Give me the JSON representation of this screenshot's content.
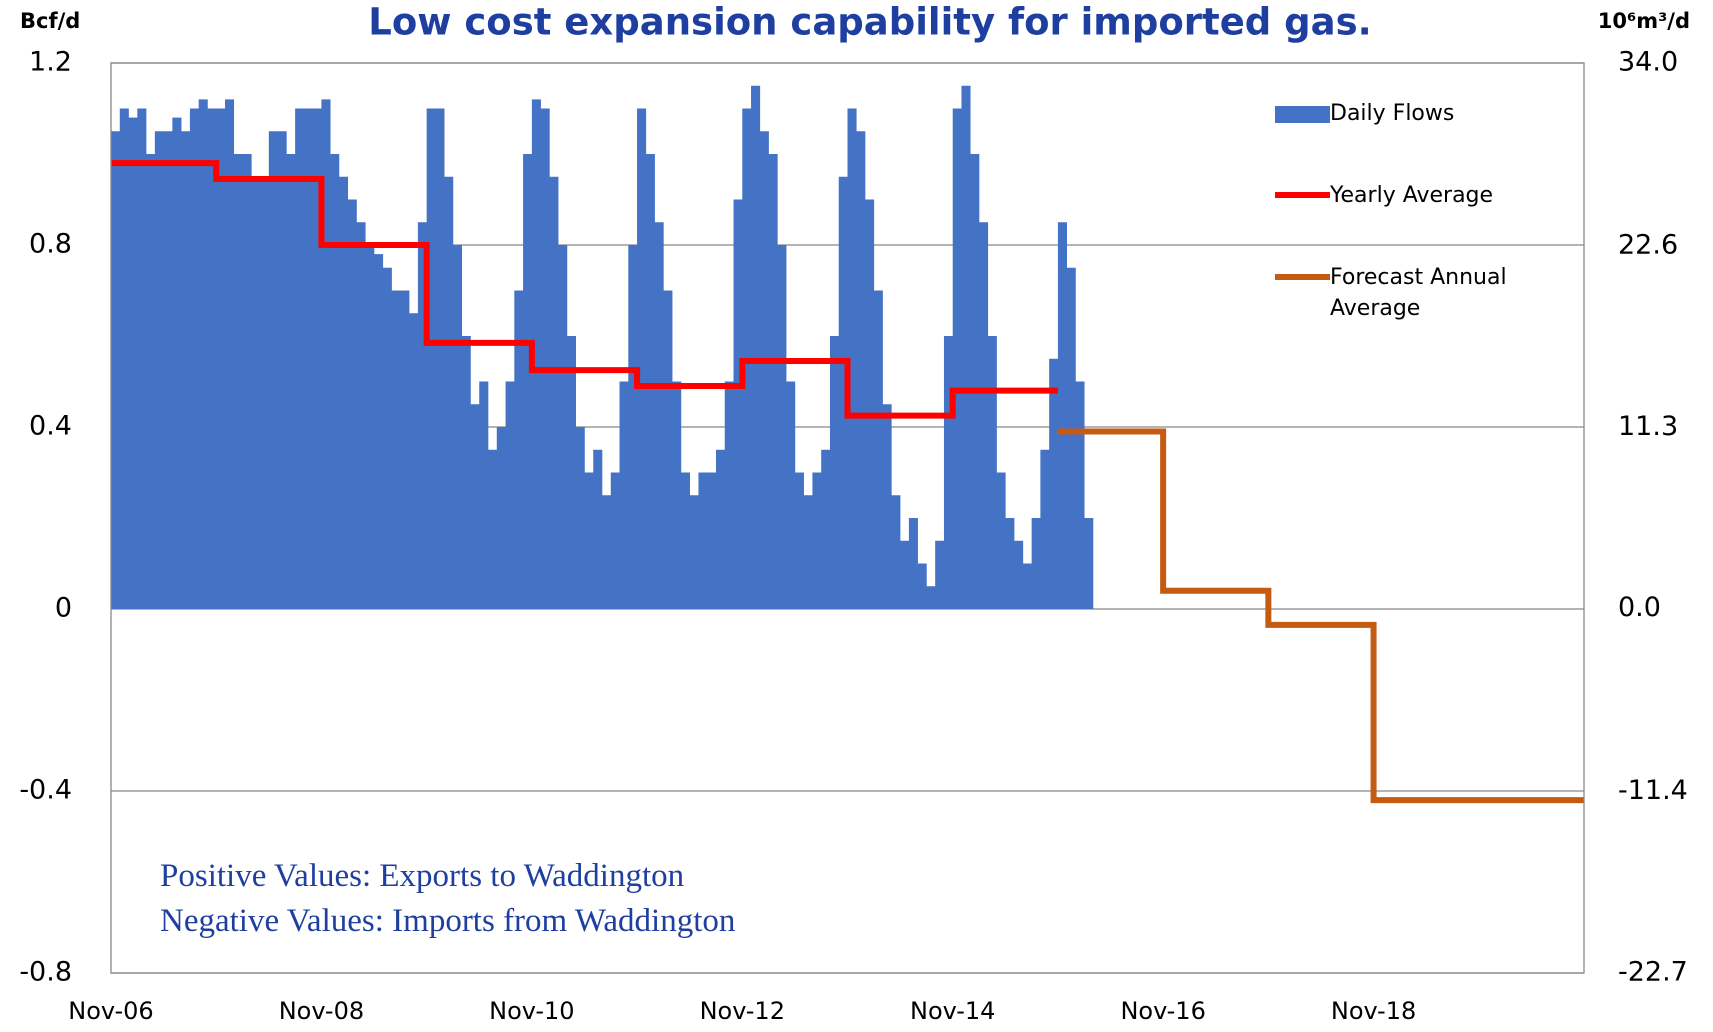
{
  "chart_data": {
    "type": "bar",
    "title": "Low cost expansion capability for imported gas.",
    "y_label": "Bcf/d",
    "y2_label": "10⁶m³/d",
    "annotations": [
      "Positive Values: Exports to Waddington",
      "Negative Values: Imports from Waddington"
    ],
    "xlim": [
      "Nov-06",
      "Nov-20"
    ],
    "xticks": [
      "Nov-06",
      "Nov-08",
      "Nov-10",
      "Nov-12",
      "Nov-14",
      "Nov-16",
      "Nov-18"
    ],
    "ylim": [
      -0.8,
      1.2
    ],
    "yticks": [
      1.2,
      0.8,
      0.4,
      0,
      -0.4,
      -0.8
    ],
    "y2lim": [
      -22.7,
      34.0
    ],
    "y2ticks": [
      {
        "value": 34,
        "label": "34.0"
      },
      22.6,
      11.3,
      {
        "value": 0,
        "label": "0.0"
      },
      -11.4,
      -22.7
    ],
    "grid": true,
    "legend": "upper right",
    "series": [
      {
        "name": "Daily Flows",
        "type": "bar",
        "color": "#4472c4",
        "x": [
          "Nov-06",
          "Dec-06",
          "Jan-07",
          "Feb-07",
          "Mar-07",
          "Apr-07",
          "May-07",
          "Jun-07",
          "Jul-07",
          "Aug-07",
          "Sep-07",
          "Oct-07",
          "Nov-07",
          "Dec-07",
          "Jan-08",
          "Feb-08",
          "Mar-08",
          "Apr-08",
          "May-08",
          "Jun-08",
          "Jul-08",
          "Aug-08",
          "Sep-08",
          "Oct-08",
          "Nov-08",
          "Dec-08",
          "Jan-09",
          "Feb-09",
          "Mar-09",
          "Apr-09",
          "May-09",
          "Jun-09",
          "Jul-09",
          "Aug-09",
          "Sep-09",
          "Oct-09",
          "Nov-09",
          "Dec-09",
          "Jan-10",
          "Feb-10",
          "Mar-10",
          "Apr-10",
          "May-10",
          "Jun-10",
          "Jul-10",
          "Aug-10",
          "Sep-10",
          "Oct-10",
          "Nov-10",
          "Dec-10",
          "Jan-11",
          "Feb-11",
          "Mar-11",
          "Apr-11",
          "May-11",
          "Jun-11",
          "Jul-11",
          "Aug-11",
          "Sep-11",
          "Oct-11",
          "Nov-11",
          "Dec-11",
          "Jan-12",
          "Feb-12",
          "Mar-12",
          "Apr-12",
          "May-12",
          "Jun-12",
          "Jul-12",
          "Aug-12",
          "Sep-12",
          "Oct-12",
          "Nov-12",
          "Dec-12",
          "Jan-13",
          "Feb-13",
          "Mar-13",
          "Apr-13",
          "May-13",
          "Jun-13",
          "Jul-13",
          "Aug-13",
          "Sep-13",
          "Oct-13",
          "Nov-13",
          "Dec-13",
          "Jan-14",
          "Feb-14",
          "Mar-14",
          "Apr-14",
          "May-14",
          "Jun-14",
          "Jul-14",
          "Aug-14",
          "Sep-14",
          "Oct-14",
          "Nov-14",
          "Dec-14",
          "Jan-15",
          "Feb-15",
          "Mar-15",
          "Apr-15",
          "May-15",
          "Jun-15",
          "Jul-15",
          "Aug-15",
          "Sep-15",
          "Oct-15",
          "Nov-15",
          "Dec-15",
          "Jan-16",
          "Feb-16"
        ],
        "values": [
          1.05,
          1.1,
          1.08,
          1.1,
          1.0,
          1.05,
          1.05,
          1.08,
          1.05,
          1.1,
          1.12,
          1.1,
          1.1,
          1.12,
          1.0,
          1.0,
          0.95,
          0.95,
          1.05,
          1.05,
          1.0,
          1.1,
          1.1,
          1.1,
          1.12,
          1.0,
          0.95,
          0.9,
          0.85,
          0.8,
          0.78,
          0.75,
          0.7,
          0.7,
          0.65,
          0.85,
          1.1,
          1.1,
          0.95,
          0.8,
          0.6,
          0.45,
          0.5,
          0.35,
          0.4,
          0.5,
          0.7,
          1.0,
          1.12,
          1.1,
          0.95,
          0.8,
          0.6,
          0.4,
          0.3,
          0.35,
          0.25,
          0.3,
          0.5,
          0.8,
          1.1,
          1.0,
          0.85,
          0.7,
          0.5,
          0.3,
          0.25,
          0.3,
          0.3,
          0.35,
          0.5,
          0.9,
          1.1,
          1.15,
          1.05,
          1.0,
          0.8,
          0.5,
          0.3,
          0.25,
          0.3,
          0.35,
          0.6,
          0.95,
          1.1,
          1.05,
          0.9,
          0.7,
          0.45,
          0.25,
          0.15,
          0.2,
          0.1,
          0.05,
          0.15,
          0.6,
          1.1,
          1.15,
          1.0,
          0.85,
          0.6,
          0.3,
          0.2,
          0.15,
          0.1,
          0.2,
          0.35,
          0.55,
          0.85,
          0.75,
          0.5,
          0.2
        ]
      },
      {
        "name": "Yearly Average",
        "type": "step",
        "color": "#ff0000",
        "x": [
          "Nov-06",
          "Nov-07",
          "Nov-08",
          "Nov-09",
          "Nov-10",
          "Nov-11",
          "Nov-12",
          "Nov-13",
          "Nov-14"
        ],
        "values": [
          0.98,
          0.945,
          0.8,
          0.585,
          0.525,
          0.49,
          0.545,
          0.425,
          0.48
        ]
      },
      {
        "name": "Forecast Annual Average",
        "type": "step",
        "color": "#c55a11",
        "x": [
          "Nov-15",
          "Nov-16",
          "Nov-17",
          "Nov-18",
          "Nov-19"
        ],
        "values": [
          0.39,
          0.04,
          -0.035,
          -0.42,
          -0.42
        ]
      }
    ]
  }
}
